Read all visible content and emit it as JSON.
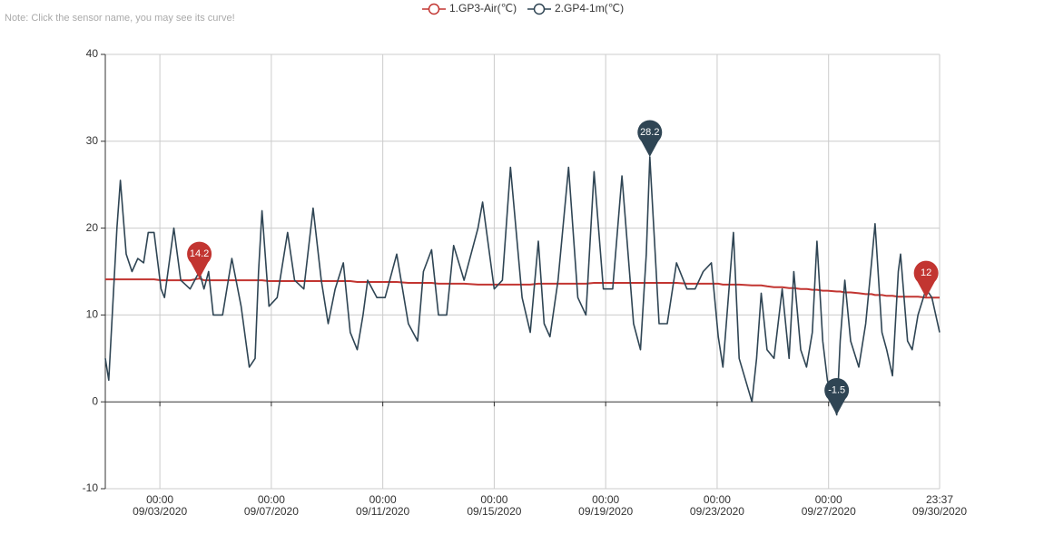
{
  "note": "Note: Click the sensor name, you may see its curve!",
  "chart_data": {
    "type": "line",
    "x": [
      "2020-09-01 01:00",
      "2020-09-01 04:00",
      "2020-09-01 11:00",
      "2020-09-01 14:00",
      "2020-09-01 19:00",
      "2020-09-02 00:00",
      "2020-09-02 05:00",
      "2020-09-02 10:00",
      "2020-09-02 14:00",
      "2020-09-02 19:00",
      "2020-09-03 01:00",
      "2020-09-03 04:00",
      "2020-09-03 12:00",
      "2020-09-03 18:00",
      "2020-09-04 02:00",
      "2020-09-04 10:00",
      "2020-09-04 14:00",
      "2020-09-04 18:00",
      "2020-09-04 22:00",
      "2020-09-05 06:00",
      "2020-09-05 14:00",
      "2020-09-05 22:00",
      "2020-09-06 05:00",
      "2020-09-06 10:00",
      "2020-09-06 13:00",
      "2020-09-06 16:00",
      "2020-09-06 22:00",
      "2020-09-07 05:00",
      "2020-09-07 14:00",
      "2020-09-07 20:00",
      "2020-09-08 04:00",
      "2020-09-08 12:00",
      "2020-09-08 19:00",
      "2020-09-09 01:00",
      "2020-09-09 07:00",
      "2020-09-09 14:00",
      "2020-09-09 20:00",
      "2020-09-10 02:00",
      "2020-09-10 07:00",
      "2020-09-10 11:00",
      "2020-09-10 19:00",
      "2020-09-11 02:00",
      "2020-09-11 12:00",
      "2020-09-11 22:00",
      "2020-09-12 06:00",
      "2020-09-12 11:00",
      "2020-09-12 18:00",
      "2020-09-13 00:00",
      "2020-09-13 07:00",
      "2020-09-13 13:00",
      "2020-09-13 22:00",
      "2020-09-14 10:00",
      "2020-09-14 14:00",
      "2020-09-15 00:00",
      "2020-09-15 07:00",
      "2020-09-15 14:00",
      "2020-09-16 00:00",
      "2020-09-16 07:00",
      "2020-09-16 14:00",
      "2020-09-16 19:00",
      "2020-09-17 00:00",
      "2020-09-17 07:00",
      "2020-09-17 16:00",
      "2020-09-18 00:00",
      "2020-09-18 07:00",
      "2020-09-18 14:00",
      "2020-09-18 22:00",
      "2020-09-19 06:00",
      "2020-09-19 14:00",
      "2020-09-20 00:00",
      "2020-09-20 06:00",
      "2020-09-20 11:00",
      "2020-09-20 14:00",
      "2020-09-20 22:00",
      "2020-09-21 05:00",
      "2020-09-21 13:00",
      "2020-09-21 22:00",
      "2020-09-22 05:00",
      "2020-09-22 12:00",
      "2020-09-22 19:00",
      "2020-09-23 01:00",
      "2020-09-23 05:00",
      "2020-09-23 14:00",
      "2020-09-23 19:00",
      "2020-09-24 06:00",
      "2020-09-24 10:00",
      "2020-09-24 14:00",
      "2020-09-24 19:00",
      "2020-09-25 01:00",
      "2020-09-25 08:00",
      "2020-09-25 14:00",
      "2020-09-25 18:00",
      "2020-09-26 00:00",
      "2020-09-26 05:00",
      "2020-09-26 10:00",
      "2020-09-26 14:00",
      "2020-09-26 19:00",
      "2020-09-26 23:00",
      "2020-09-27 07:00",
      "2020-09-27 10:00",
      "2020-09-27 14:00",
      "2020-09-27 19:00",
      "2020-09-28 02:00",
      "2020-09-28 08:00",
      "2020-09-28 13:00",
      "2020-09-28 16:00",
      "2020-09-28 22:00",
      "2020-09-29 02:00",
      "2020-09-29 07:00",
      "2020-09-29 12:00",
      "2020-09-29 14:00",
      "2020-09-29 20:00",
      "2020-09-30 00:00",
      "2020-09-30 05:00",
      "2020-09-30 12:00",
      "2020-09-30 17:00",
      "2020-09-30 23:37"
    ],
    "series": [
      {
        "name": "1.GP3-Air(℃)",
        "color": "#c23531",
        "values": [
          14.1,
          14.1,
          14.1,
          14.1,
          14.1,
          14.1,
          14.1,
          14.1,
          14.1,
          14.1,
          14.0,
          14.0,
          14.0,
          14.0,
          14.0,
          14.2,
          14.0,
          14.0,
          14.0,
          14.0,
          14.0,
          14.0,
          14.0,
          14.0,
          14.0,
          14.0,
          13.9,
          13.9,
          13.9,
          13.9,
          13.9,
          13.9,
          13.9,
          13.9,
          13.9,
          13.9,
          13.9,
          13.8,
          13.8,
          13.8,
          13.8,
          13.8,
          13.8,
          13.7,
          13.7,
          13.7,
          13.7,
          13.6,
          13.6,
          13.6,
          13.6,
          13.5,
          13.5,
          13.5,
          13.5,
          13.5,
          13.5,
          13.5,
          13.6,
          13.6,
          13.6,
          13.6,
          13.6,
          13.6,
          13.6,
          13.7,
          13.7,
          13.7,
          13.7,
          13.7,
          13.7,
          13.7,
          13.7,
          13.7,
          13.7,
          13.7,
          13.6,
          13.6,
          13.6,
          13.6,
          13.6,
          13.5,
          13.5,
          13.5,
          13.4,
          13.4,
          13.4,
          13.3,
          13.2,
          13.2,
          13.1,
          13.1,
          13.0,
          13.0,
          12.9,
          12.9,
          12.8,
          12.8,
          12.7,
          12.7,
          12.6,
          12.6,
          12.5,
          12.4,
          12.4,
          12.3,
          12.3,
          12.2,
          12.2,
          12.1,
          12.1,
          12.1,
          12.1,
          12.1,
          12,
          12,
          12
        ],
        "mark_points": [
          {
            "x": "2020-09-04 10:00",
            "value": 14.2
          },
          {
            "x": "2020-09-30 12:00",
            "value": 12
          }
        ]
      },
      {
        "name": "2.GP4-1m(℃)",
        "color": "#2f4554",
        "values": [
          5,
          2.5,
          20,
          25.5,
          17,
          15,
          16.5,
          16,
          19.5,
          19.5,
          13,
          12,
          20,
          14,
          13,
          15,
          13,
          15,
          10,
          10,
          16.5,
          11,
          4,
          5,
          15,
          22,
          11,
          12,
          19.5,
          14,
          13,
          22.3,
          14,
          9,
          13,
          16,
          8,
          6,
          10,
          14,
          12,
          12,
          17,
          9,
          7,
          15,
          17.5,
          10,
          10,
          18,
          14,
          20,
          23,
          13,
          14,
          27,
          12,
          8,
          18.5,
          9,
          7.5,
          14,
          27,
          12,
          10,
          26.5,
          13,
          13,
          26,
          9,
          6,
          17,
          28.2,
          9,
          9,
          16,
          13,
          13,
          15,
          16,
          7.5,
          4,
          19.5,
          5,
          0,
          5,
          12.5,
          6,
          5,
          13,
          5,
          15,
          6,
          4,
          8,
          18.5,
          7,
          2.5,
          -1.5,
          7,
          14,
          7,
          4,
          9,
          16,
          20.5,
          8,
          6,
          3,
          15,
          17,
          7,
          6,
          10,
          13,
          12,
          8
        ],
        "mark_points": [
          {
            "x": "2020-09-20 14:00",
            "value": 28.2
          },
          {
            "x": "2020-09-27 07:00",
            "value": -1.5
          }
        ]
      }
    ],
    "xlim": [
      "2020-09-01 01:00",
      "2020-09-30 23:37"
    ],
    "xticks": [
      {
        "value": "2020-09-03 00:00",
        "label": "00:00\n09/03/2020"
      },
      {
        "value": "2020-09-07 00:00",
        "label": "00:00\n09/07/2020"
      },
      {
        "value": "2020-09-11 00:00",
        "label": "00:00\n09/11/2020"
      },
      {
        "value": "2020-09-15 00:00",
        "label": "00:00\n09/15/2020"
      },
      {
        "value": "2020-09-19 00:00",
        "label": "00:00\n09/19/2020"
      },
      {
        "value": "2020-09-23 00:00",
        "label": "00:00\n09/23/2020"
      },
      {
        "value": "2020-09-27 00:00",
        "label": "00:00\n09/27/2020"
      },
      {
        "value": "2020-09-30 23:37",
        "label": "23:37\n09/30/2020"
      }
    ],
    "ylim": [
      -10,
      40
    ],
    "yticks": [
      -10,
      0,
      10,
      20,
      30,
      40
    ],
    "grid": true
  }
}
